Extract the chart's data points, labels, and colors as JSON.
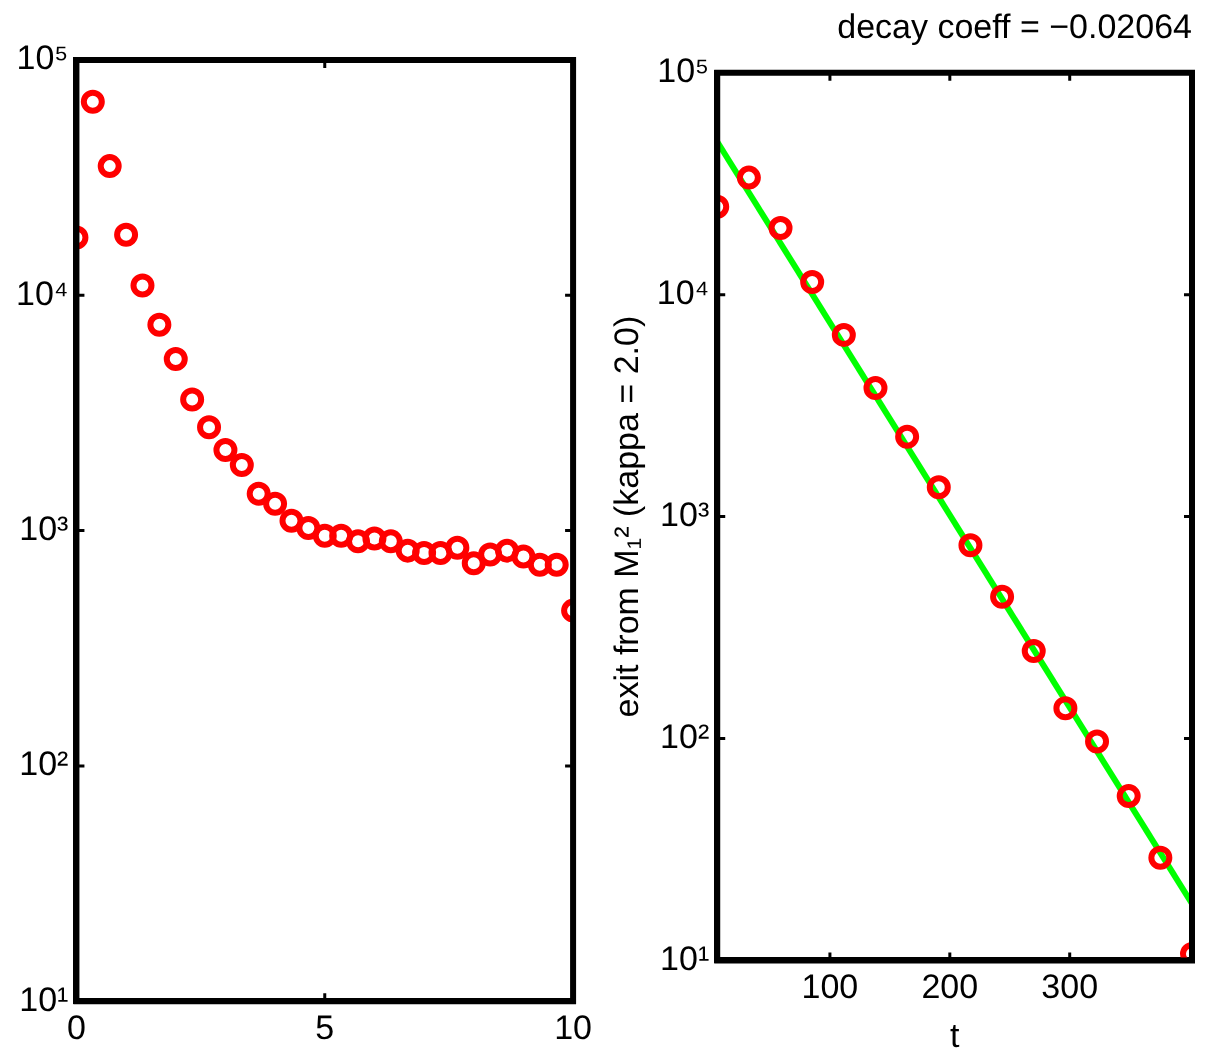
{
  "chart_data": [
    {
      "type": "scatter",
      "x": [
        0,
        0.33,
        0.67,
        1,
        1.33,
        1.67,
        2,
        2.33,
        2.67,
        3,
        3.33,
        3.67,
        4,
        4.33,
        4.67,
        5,
        5.33,
        5.67,
        6,
        6.33,
        6.67,
        7,
        7.33,
        7.67,
        8,
        8.33,
        8.67,
        9,
        9.33,
        9.67,
        10
      ],
      "series": [
        {
          "color": "#ff0000",
          "values": [
            17600,
            66500,
            35400,
            18100,
            11000,
            7500,
            5360,
            3610,
            2750,
            2200,
            1900,
            1435,
            1300,
            1100,
            1025,
            950,
            950,
            900,
            925,
            900,
            822,
            803,
            803,
            845,
            727,
            792,
            822,
            776,
            716,
            716,
            457
          ]
        }
      ],
      "marker": "circle",
      "log": "y",
      "xlim": [
        0,
        10
      ],
      "xticks": [
        0,
        5,
        10
      ],
      "ylim": [
        10,
        100000
      ],
      "yticks": [
        {
          "value": 10,
          "label": "10¹"
        },
        {
          "value": 100,
          "label": "10²"
        },
        {
          "value": 1000,
          "label": "10³"
        },
        {
          "value": 10000,
          "label": "10⁴"
        },
        {
          "value": 100000,
          "label": "10⁵"
        }
      ]
    },
    {
      "type": "scatter",
      "title": "decay coeff = −0.02064",
      "xlabel": "t",
      "ylabel": "exit from M₁² (kappa = 2.0)",
      "x": [
        6,
        32.4,
        58.8,
        85.2,
        111.6,
        138,
        164.4,
        190.8,
        217.2,
        243.6,
        270,
        296.4,
        322.8,
        349.2,
        375.6,
        402
      ],
      "series": [
        {
          "color": "#ff0000",
          "values": [
            24900,
            33700,
            20000,
            11400,
            6590,
            3800,
            2290,
            1355,
            743,
            435,
            248,
            137,
            97,
            55,
            29,
            10.7
          ]
        },
        {
          "type": "line",
          "color": "#00ff00",
          "marker": "none",
          "x": [
            6,
            402
          ],
          "values": [
            48900,
            18
          ]
        }
      ],
      "marker": "circle",
      "log": "y",
      "xlim": [
        6,
        402
      ],
      "xticks": [
        100,
        200,
        300
      ],
      "ylim": [
        10,
        100000
      ],
      "yticks": [
        {
          "value": 10,
          "label": "10¹"
        },
        {
          "value": 100,
          "label": "10²"
        },
        {
          "value": 1000,
          "label": "10³"
        },
        {
          "value": 10000,
          "label": "10⁴"
        },
        {
          "value": 100000,
          "label": "10⁵"
        }
      ]
    }
  ]
}
